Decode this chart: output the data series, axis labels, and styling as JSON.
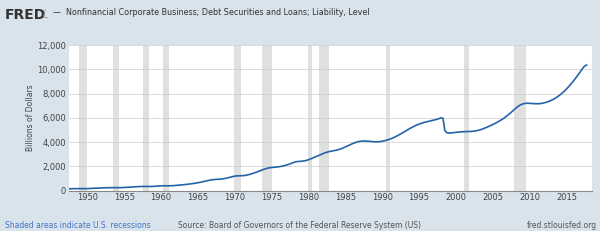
{
  "title": "Nonfinancial Corporate Business; Debt Securities and Loans; Liability, Level",
  "ylabel": "Billions of Dollars",
  "background_color": "#d8e3ec",
  "plot_bg_color": "#ffffff",
  "header_bg_color": "#d8e3ec",
  "line_color": "#2563a8",
  "line_width": 1.2,
  "ylim": [
    0,
    12000
  ],
  "xlim": [
    1947.5,
    2018.5
  ],
  "yticks": [
    0,
    2000,
    4000,
    6000,
    8000,
    10000,
    12000
  ],
  "xticks": [
    1950,
    1955,
    1960,
    1965,
    1970,
    1975,
    1980,
    1985,
    1990,
    1995,
    2000,
    2005,
    2010,
    2015
  ],
  "recession_bands": [
    [
      1948.917,
      1949.917
    ],
    [
      1953.417,
      1954.333
    ],
    [
      1957.583,
      1958.333
    ],
    [
      1960.25,
      1961.083
    ],
    [
      1969.917,
      1970.833
    ],
    [
      1973.75,
      1975.0
    ],
    [
      1980.0,
      1980.5
    ],
    [
      1981.417,
      1982.833
    ],
    [
      1990.5,
      1991.0
    ],
    [
      2001.167,
      2001.833
    ],
    [
      2007.917,
      2009.5
    ]
  ],
  "recession_color": "#e0e0e0",
  "footer_left": "Shaded areas indicate U.S. recessions",
  "footer_center": "Source: Board of Governors of the Federal Reserve System (US)",
  "footer_right": "fred.stlouisfed.org",
  "series_label": "Nonfinancial Corporate Business; Debt Securities and Loans; Liability, Level",
  "data_x": [
    1947.0,
    1947.25,
    1947.5,
    1947.75,
    1948.0,
    1948.25,
    1948.5,
    1948.75,
    1949.0,
    1949.25,
    1949.5,
    1949.75,
    1950.0,
    1950.25,
    1950.5,
    1950.75,
    1951.0,
    1951.25,
    1951.5,
    1951.75,
    1952.0,
    1952.25,
    1952.5,
    1952.75,
    1953.0,
    1953.25,
    1953.5,
    1953.75,
    1954.0,
    1954.25,
    1954.5,
    1954.75,
    1955.0,
    1955.25,
    1955.5,
    1955.75,
    1956.0,
    1956.25,
    1956.5,
    1956.75,
    1957.0,
    1957.25,
    1957.5,
    1957.75,
    1958.0,
    1958.25,
    1958.5,
    1958.75,
    1959.0,
    1959.25,
    1959.5,
    1959.75,
    1960.0,
    1960.25,
    1960.5,
    1960.75,
    1961.0,
    1961.25,
    1961.5,
    1961.75,
    1962.0,
    1962.25,
    1962.5,
    1962.75,
    1963.0,
    1963.25,
    1963.5,
    1963.75,
    1964.0,
    1964.25,
    1964.5,
    1964.75,
    1965.0,
    1965.25,
    1965.5,
    1965.75,
    1966.0,
    1966.25,
    1966.5,
    1966.75,
    1967.0,
    1967.25,
    1967.5,
    1967.75,
    1968.0,
    1968.25,
    1968.5,
    1968.75,
    1969.0,
    1969.25,
    1969.5,
    1969.75,
    1970.0,
    1970.25,
    1970.5,
    1970.75,
    1971.0,
    1971.25,
    1971.5,
    1971.75,
    1972.0,
    1972.25,
    1972.5,
    1972.75,
    1973.0,
    1973.25,
    1973.5,
    1973.75,
    1974.0,
    1974.25,
    1974.5,
    1974.75,
    1975.0,
    1975.25,
    1975.5,
    1975.75,
    1976.0,
    1976.25,
    1976.5,
    1976.75,
    1977.0,
    1977.25,
    1977.5,
    1977.75,
    1978.0,
    1978.25,
    1978.5,
    1978.75,
    1979.0,
    1979.25,
    1979.5,
    1979.75,
    1980.0,
    1980.25,
    1980.5,
    1980.75,
    1981.0,
    1981.25,
    1981.5,
    1981.75,
    1982.0,
    1982.25,
    1982.5,
    1982.75,
    1983.0,
    1983.25,
    1983.5,
    1983.75,
    1984.0,
    1984.25,
    1984.5,
    1984.75,
    1985.0,
    1985.25,
    1985.5,
    1985.75,
    1986.0,
    1986.25,
    1986.5,
    1986.75,
    1987.0,
    1987.25,
    1987.5,
    1987.75,
    1988.0,
    1988.25,
    1988.5,
    1988.75,
    1989.0,
    1989.25,
    1989.5,
    1989.75,
    1990.0,
    1990.25,
    1990.5,
    1990.75,
    1991.0,
    1991.25,
    1991.5,
    1991.75,
    1992.0,
    1992.25,
    1992.5,
    1992.75,
    1993.0,
    1993.25,
    1993.5,
    1993.75,
    1994.0,
    1994.25,
    1994.5,
    1994.75,
    1995.0,
    1995.25,
    1995.5,
    1995.75,
    1996.0,
    1996.25,
    1996.5,
    1996.75,
    1997.0,
    1997.25,
    1997.5,
    1997.75,
    1998.0,
    1998.25,
    1998.5,
    1998.75,
    1999.0,
    1999.25,
    1999.5,
    1999.75,
    2000.0,
    2000.25,
    2000.5,
    2000.75,
    2001.0,
    2001.25,
    2001.5,
    2001.75,
    2002.0,
    2002.25,
    2002.5,
    2002.75,
    2003.0,
    2003.25,
    2003.5,
    2003.75,
    2004.0,
    2004.25,
    2004.5,
    2004.75,
    2005.0,
    2005.25,
    2005.5,
    2005.75,
    2006.0,
    2006.25,
    2006.5,
    2006.75,
    2007.0,
    2007.25,
    2007.5,
    2007.75,
    2008.0,
    2008.25,
    2008.5,
    2008.75,
    2009.0,
    2009.25,
    2009.5,
    2009.75,
    2010.0,
    2010.25,
    2010.5,
    2010.75,
    2011.0,
    2011.25,
    2011.5,
    2011.75,
    2012.0,
    2012.25,
    2012.5,
    2012.75,
    2013.0,
    2013.25,
    2013.5,
    2013.75,
    2014.0,
    2014.25,
    2014.5,
    2014.75,
    2015.0,
    2015.25,
    2015.5,
    2015.75,
    2016.0,
    2016.25,
    2016.5,
    2016.75,
    2017.0,
    2017.25,
    2017.5,
    2017.75
  ],
  "data_y": [
    140,
    145,
    148,
    152,
    155,
    158,
    162,
    165,
    162,
    160,
    158,
    156,
    162,
    170,
    180,
    192,
    200,
    208,
    215,
    220,
    224,
    228,
    232,
    236,
    240,
    244,
    246,
    244,
    240,
    240,
    243,
    248,
    256,
    266,
    278,
    290,
    300,
    310,
    318,
    324,
    330,
    336,
    340,
    338,
    334,
    332,
    334,
    338,
    346,
    358,
    372,
    384,
    392,
    396,
    396,
    392,
    390,
    394,
    400,
    410,
    422,
    436,
    450,
    465,
    480,
    496,
    513,
    530,
    550,
    572,
    596,
    620,
    646,
    676,
    710,
    746,
    782,
    818,
    850,
    876,
    896,
    912,
    922,
    928,
    938,
    956,
    980,
    1010,
    1046,
    1086,
    1126,
    1162,
    1190,
    1208,
    1216,
    1218,
    1224,
    1238,
    1260,
    1290,
    1328,
    1374,
    1424,
    1476,
    1532,
    1592,
    1654,
    1714,
    1768,
    1816,
    1856,
    1888,
    1908,
    1920,
    1930,
    1944,
    1964,
    1990,
    2020,
    2056,
    2100,
    2150,
    2206,
    2266,
    2320,
    2364,
    2394,
    2410,
    2418,
    2432,
    2458,
    2494,
    2542,
    2600,
    2662,
    2728,
    2796,
    2866,
    2934,
    3000,
    3062,
    3118,
    3166,
    3206,
    3240,
    3270,
    3298,
    3328,
    3364,
    3408,
    3462,
    3526,
    3596,
    3668,
    3740,
    3810,
    3876,
    3936,
    3988,
    4030,
    4060,
    4078,
    4086,
    4084,
    4076,
    4062,
    4046,
    4032,
    4022,
    4020,
    4028,
    4044,
    4068,
    4100,
    4138,
    4180,
    4230,
    4286,
    4350,
    4422,
    4500,
    4582,
    4668,
    4756,
    4846,
    4938,
    5028,
    5116,
    5200,
    5280,
    5354,
    5420,
    5480,
    5534,
    5582,
    5626,
    5666,
    5704,
    5740,
    5774,
    5808,
    5848,
    5892,
    5942,
    5998,
    5962,
    4950,
    4780,
    4740,
    4744,
    4760,
    4780,
    4800,
    4820,
    4836,
    4848,
    4856,
    4860,
    4862,
    4864,
    4870,
    4882,
    4902,
    4928,
    4960,
    5000,
    5050,
    5108,
    5168,
    5232,
    5298,
    5366,
    5438,
    5514,
    5594,
    5678,
    5768,
    5862,
    5964,
    6074,
    6192,
    6318,
    6452,
    6590,
    6726,
    6854,
    6968,
    7062,
    7128,
    7174,
    7196,
    7200,
    7194,
    7184,
    7172,
    7162,
    7158,
    7162,
    7176,
    7200,
    7234,
    7276,
    7326,
    7384,
    7452,
    7530,
    7618,
    7716,
    7826,
    7946,
    8076,
    8216,
    8368,
    8530,
    8702,
    8882,
    9070,
    9266,
    9470,
    9680,
    9896,
    10118,
    10280,
    10350
  ]
}
